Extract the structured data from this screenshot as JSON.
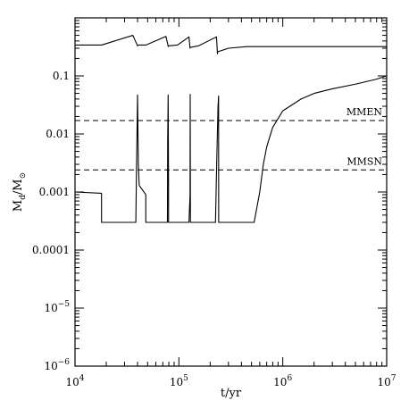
{
  "chart_data": {
    "type": "line",
    "xscale": "log",
    "yscale": "log",
    "xlim": [
      10000,
      10000000
    ],
    "ylim": [
      1e-06,
      1
    ],
    "xlabel": "t/yr",
    "ylabel": "M_d/M_⊙",
    "xticks": [
      {
        "value": 10000,
        "base": "10",
        "exp": "4"
      },
      {
        "value": 100000,
        "base": "10",
        "exp": "5"
      },
      {
        "value": 1000000,
        "base": "10",
        "exp": "6"
      },
      {
        "value": 10000000,
        "base": "10",
        "exp": "7"
      }
    ],
    "yticks": [
      {
        "value": 1e-06,
        "base": "10",
        "exp": "−6",
        "text": ""
      },
      {
        "value": 1e-05,
        "base": "10",
        "exp": "−5",
        "text": ""
      },
      {
        "value": 0.0001,
        "base": "",
        "exp": "",
        "text": "0.0001"
      },
      {
        "value": 0.001,
        "base": "",
        "exp": "",
        "text": "0.001"
      },
      {
        "value": 0.01,
        "base": "",
        "exp": "",
        "text": "0.01"
      },
      {
        "value": 0.1,
        "base": "",
        "exp": "",
        "text": "0.1"
      }
    ],
    "reference_lines": [
      {
        "label": "MMEN",
        "y": 0.017,
        "style": "dashed"
      },
      {
        "label": "MMSN",
        "y": 0.0024,
        "style": "dashed"
      }
    ],
    "series": [
      {
        "style": "solid",
        "x": [
          10000,
          18000,
          36000,
          40000,
          40800,
          48000,
          75000,
          79000,
          79700,
          97000,
          125000,
          128000,
          128800,
          155000,
          230000,
          235000,
          236000,
          300000,
          450000,
          1000000,
          10000000
        ],
        "y": [
          0.34,
          0.34,
          0.5,
          0.33,
          0.34,
          0.34,
          0.48,
          0.32,
          0.33,
          0.34,
          0.47,
          0.3,
          0.31,
          0.33,
          0.47,
          0.24,
          0.26,
          0.3,
          0.32,
          0.32,
          0.32
        ]
      },
      {
        "style": "solid",
        "x": [
          10000,
          18000,
          18000,
          36000,
          38500,
          39000,
          40000,
          40700,
          41500,
          48000,
          48000,
          74000,
          77500,
          78000,
          78800,
          79500,
          79500,
          99000,
          99000,
          125000,
          128000,
          128500,
          129000,
          129000,
          150000,
          150000,
          225000,
          231000,
          238000,
          241000,
          241500,
          530000,
          600000,
          650000,
          700000,
          800000,
          1000000,
          1500000,
          2000000,
          3000000,
          5000000,
          8000000,
          10000000
        ],
        "y": [
          0.001,
          0.00095,
          0.0003,
          0.0003,
          0.0003,
          0.002,
          0.047,
          0.003,
          0.0013,
          0.0009,
          0.0003,
          0.0003,
          0.0003,
          0.008,
          0.047,
          0.0013,
          0.0003,
          0.0003,
          0.0003,
          0.0003,
          0.0009,
          0.048,
          0.0013,
          0.0003,
          0.0003,
          0.0003,
          0.0003,
          0.003,
          0.03,
          0.045,
          0.0003,
          0.0003,
          0.001,
          0.003,
          0.006,
          0.013,
          0.025,
          0.04,
          0.05,
          0.06,
          0.072,
          0.088,
          0.1
        ]
      }
    ]
  }
}
